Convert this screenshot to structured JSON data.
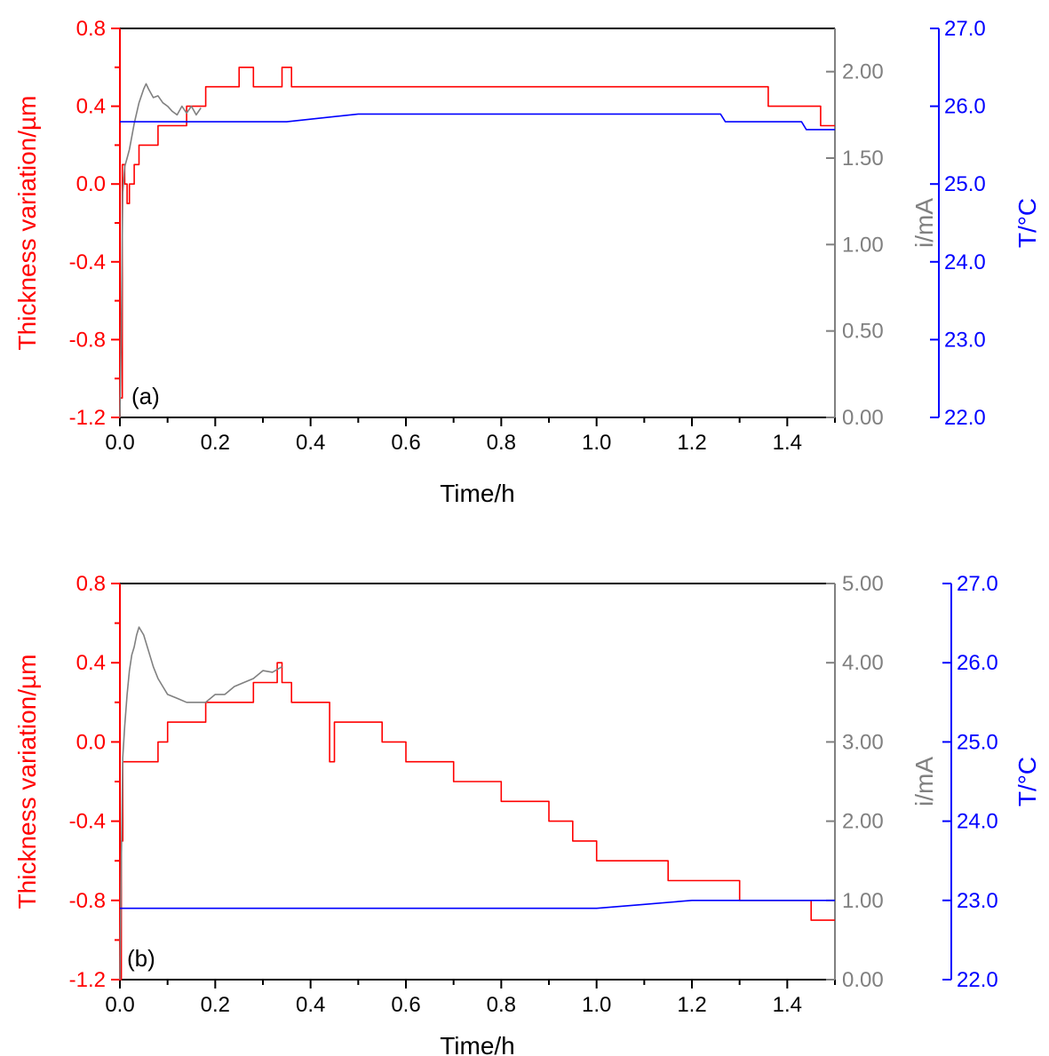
{
  "colors": {
    "thickness": "#ff0000",
    "current": "#808080",
    "temperature": "#0000ff",
    "frame": "#000000"
  },
  "chart_data": [
    {
      "type": "line",
      "panel_label": "(a)",
      "xlabel": "Time/h",
      "ylabel_left": "Thickness variation/µm",
      "ylabel_right1": "i/mA",
      "ylabel_right2": "T/°C",
      "xlim": [
        0,
        1.5
      ],
      "ylim_left": [
        -1.2,
        0.8
      ],
      "ylim_right1": [
        0,
        2.25
      ],
      "ylim_right2": [
        22,
        27
      ],
      "x_ticks": [
        "0.0",
        "0.2",
        "0.4",
        "0.6",
        "0.8",
        "1.0",
        "1.2",
        "1.4"
      ],
      "y_ticks_left": [
        "-1.2",
        "-0.8",
        "-0.4",
        "0.0",
        "0.4",
        "0.8"
      ],
      "y_ticks_right1": [
        "0.00",
        "0.50",
        "1.00",
        "1.50",
        "2.00"
      ],
      "y_ticks_right2": [
        "22.0",
        "23.0",
        "24.0",
        "25.0",
        "26.0",
        "27.0"
      ],
      "grid": false,
      "series": [
        {
          "axis": "left",
          "color": "#ff0000",
          "x": [
            0,
            0.005,
            0.01,
            0.015,
            0.02,
            0.03,
            0.04,
            0.06,
            0.08,
            0.1,
            0.12,
            0.14,
            0.16,
            0.18,
            0.2,
            0.22,
            0.25,
            0.28,
            0.3,
            0.32,
            0.34,
            0.36,
            0.45,
            0.6,
            0.8,
            1.0,
            1.2,
            1.35,
            1.36,
            1.4,
            1.44,
            1.47,
            1.5
          ],
          "y": [
            -1.1,
            0.1,
            0.0,
            -0.1,
            0.0,
            0.1,
            0.2,
            0.2,
            0.3,
            0.3,
            0.3,
            0.4,
            0.4,
            0.5,
            0.5,
            0.5,
            0.6,
            0.5,
            0.5,
            0.5,
            0.6,
            0.5,
            0.5,
            0.5,
            0.5,
            0.5,
            0.5,
            0.5,
            0.4,
            0.4,
            0.4,
            0.3,
            0.3
          ]
        },
        {
          "axis": "right1",
          "color": "#808080",
          "x": [
            0,
            0.003,
            0.006,
            0.01,
            0.015,
            0.02,
            0.03,
            0.04,
            0.05,
            0.055,
            0.06,
            0.07,
            0.08,
            0.09,
            0.1,
            0.11,
            0.12,
            0.13,
            0.14,
            0.15,
            0.16,
            0.17
          ],
          "y": [
            0.0,
            0.5,
            1.3,
            1.45,
            1.5,
            1.55,
            1.7,
            1.82,
            1.9,
            1.93,
            1.9,
            1.85,
            1.86,
            1.82,
            1.8,
            1.77,
            1.75,
            1.8,
            1.76,
            1.8,
            1.75,
            1.79
          ]
        },
        {
          "axis": "right2",
          "color": "#0000ff",
          "x": [
            0,
            0.1,
            0.2,
            0.35,
            0.5,
            0.7,
            0.9,
            1.1,
            1.26,
            1.27,
            1.4,
            1.43,
            1.44,
            1.5
          ],
          "y": [
            25.8,
            25.8,
            25.8,
            25.8,
            25.9,
            25.9,
            25.9,
            25.9,
            25.9,
            25.8,
            25.8,
            25.8,
            25.7,
            25.7
          ]
        }
      ]
    },
    {
      "type": "line",
      "panel_label": "(b)",
      "xlabel": "Time/h",
      "ylabel_left": "Thickness variation/µm",
      "ylabel_right1": "i/mA",
      "ylabel_right2": "T/°C",
      "xlim": [
        0,
        1.5
      ],
      "ylim_left": [
        -1.2,
        0.8
      ],
      "ylim_right1": [
        0,
        5
      ],
      "ylim_right2": [
        22,
        27
      ],
      "x_ticks": [
        "0.0",
        "0.2",
        "0.4",
        "0.6",
        "0.8",
        "1.0",
        "1.2",
        "1.4"
      ],
      "y_ticks_left": [
        "-1.2",
        "-0.8",
        "-0.4",
        "0.0",
        "0.4",
        "0.8"
      ],
      "y_ticks_right1": [
        "0.00",
        "1.00",
        "2.00",
        "3.00",
        "4.00",
        "5.00"
      ],
      "y_ticks_right2": [
        "22.0",
        "23.0",
        "24.0",
        "25.0",
        "26.0",
        "27.0"
      ],
      "grid": false,
      "series": [
        {
          "axis": "left",
          "color": "#ff0000",
          "x": [
            0,
            0.003,
            0.006,
            0.01,
            0.05,
            0.08,
            0.1,
            0.15,
            0.18,
            0.2,
            0.25,
            0.28,
            0.3,
            0.32,
            0.33,
            0.34,
            0.36,
            0.4,
            0.43,
            0.44,
            0.45,
            0.5,
            0.55,
            0.6,
            0.65,
            0.7,
            0.75,
            0.8,
            0.85,
            0.9,
            0.95,
            1.0,
            1.05,
            1.1,
            1.15,
            1.2,
            1.25,
            1.3,
            1.35,
            1.4,
            1.45,
            1.5
          ],
          "y": [
            -1.2,
            -0.5,
            -0.1,
            -0.1,
            -0.1,
            0.0,
            0.1,
            0.1,
            0.2,
            0.2,
            0.2,
            0.3,
            0.3,
            0.3,
            0.4,
            0.3,
            0.2,
            0.2,
            0.2,
            -0.1,
            0.1,
            0.1,
            0.0,
            -0.1,
            -0.1,
            -0.2,
            -0.2,
            -0.3,
            -0.3,
            -0.4,
            -0.5,
            -0.6,
            -0.6,
            -0.6,
            -0.7,
            -0.7,
            -0.7,
            -0.8,
            -0.8,
            -0.8,
            -0.9,
            -0.9
          ]
        },
        {
          "axis": "right1",
          "color": "#808080",
          "x": [
            0,
            0.003,
            0.006,
            0.01,
            0.015,
            0.02,
            0.025,
            0.03,
            0.035,
            0.04,
            0.05,
            0.06,
            0.07,
            0.08,
            0.09,
            0.1,
            0.12,
            0.14,
            0.16,
            0.18,
            0.2,
            0.22,
            0.24,
            0.26,
            0.28,
            0.3,
            0.32,
            0.34
          ],
          "y": [
            0.0,
            1.5,
            2.8,
            3.2,
            3.6,
            3.9,
            4.1,
            4.2,
            4.35,
            4.45,
            4.35,
            4.15,
            3.95,
            3.8,
            3.7,
            3.6,
            3.55,
            3.5,
            3.5,
            3.5,
            3.6,
            3.6,
            3.7,
            3.75,
            3.8,
            3.9,
            3.88,
            3.95
          ]
        },
        {
          "axis": "right2",
          "color": "#0000ff",
          "x": [
            0,
            0.1,
            0.2,
            0.3,
            0.5,
            0.7,
            0.9,
            0.98,
            1.0,
            1.1,
            1.2,
            1.3,
            1.4,
            1.5
          ],
          "y": [
            22.9,
            22.9,
            22.9,
            22.9,
            22.9,
            22.9,
            22.9,
            22.9,
            22.9,
            22.95,
            23.0,
            23.0,
            23.0,
            23.0
          ]
        }
      ]
    }
  ]
}
